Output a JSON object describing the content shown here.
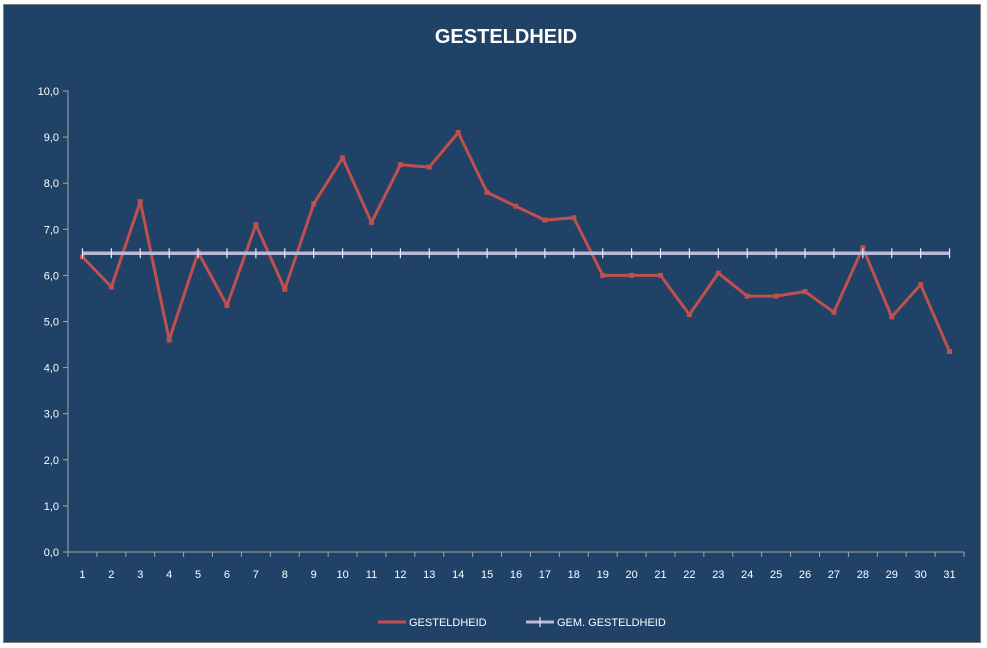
{
  "chart_data": {
    "type": "line",
    "title": "GESTELDHEID",
    "xlabel": "",
    "ylabel": "",
    "categories": [
      "1",
      "2",
      "3",
      "4",
      "5",
      "6",
      "7",
      "8",
      "9",
      "10",
      "11",
      "12",
      "13",
      "14",
      "15",
      "16",
      "17",
      "18",
      "19",
      "20",
      "21",
      "22",
      "23",
      "24",
      "25",
      "26",
      "27",
      "28",
      "29",
      "30",
      "31"
    ],
    "ylim": [
      0,
      10
    ],
    "yticks": [
      "0,0",
      "1,0",
      "2,0",
      "3,0",
      "4,0",
      "5,0",
      "6,0",
      "7,0",
      "8,0",
      "9,0",
      "10,0"
    ],
    "grid": false,
    "legend_position": "bottom",
    "series": [
      {
        "name": "GESTELDHEID",
        "color": "#c0504d",
        "values": [
          6.4,
          5.75,
          7.6,
          4.6,
          6.5,
          5.35,
          7.1,
          5.7,
          7.55,
          8.55,
          7.15,
          8.4,
          8.35,
          9.1,
          7.8,
          7.5,
          7.2,
          7.25,
          6.0,
          6.0,
          6.0,
          5.15,
          6.05,
          5.55,
          5.55,
          5.65,
          5.2,
          6.6,
          5.1,
          5.8,
          4.35
        ]
      },
      {
        "name": "GEM. GESTELDHEID",
        "color": "#b8b8d8",
        "values": [
          6.48,
          6.48,
          6.48,
          6.48,
          6.48,
          6.48,
          6.48,
          6.48,
          6.48,
          6.48,
          6.48,
          6.48,
          6.48,
          6.48,
          6.48,
          6.48,
          6.48,
          6.48,
          6.48,
          6.48,
          6.48,
          6.48,
          6.48,
          6.48,
          6.48,
          6.48,
          6.48,
          6.48,
          6.48,
          6.48,
          6.48
        ]
      }
    ]
  }
}
